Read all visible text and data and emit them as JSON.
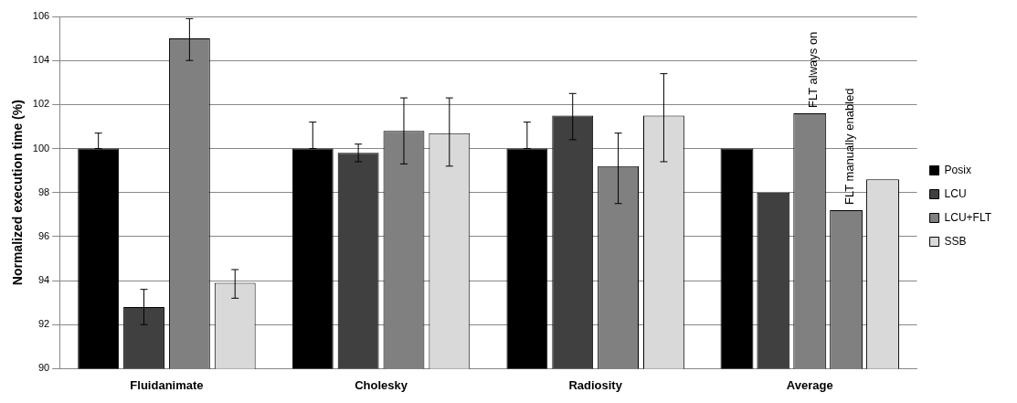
{
  "chart_data": {
    "type": "bar",
    "ylabel": "Normalized execution time (%)",
    "categories": [
      "Fluidanimate",
      "Cholesky",
      "Radiosity",
      "Average"
    ],
    "series": [
      {
        "name": "Posix",
        "color": "#000000",
        "values": [
          100,
          100,
          100,
          100
        ],
        "errors": [
          [
            100,
            100.7
          ],
          [
            100,
            101.2
          ],
          [
            100,
            101.2
          ],
          null
        ]
      },
      {
        "name": "LCU",
        "color": "#404040",
        "values": [
          92.8,
          99.8,
          101.5,
          98.0
        ],
        "errors": [
          [
            92.0,
            93.6
          ],
          [
            99.4,
            100.2
          ],
          [
            100.4,
            102.5
          ],
          null
        ]
      },
      {
        "name": "LCU+FLT",
        "color": "#808080",
        "values": [
          105.0,
          100.8,
          99.2,
          101.6
        ],
        "errors": [
          [
            104.0,
            105.9
          ],
          [
            99.3,
            102.3
          ],
          [
            97.5,
            100.7
          ],
          null
        ]
      },
      {
        "color": "#808080",
        "values": [
          null,
          null,
          null,
          97.2
        ]
      },
      {
        "name": "SSB",
        "color": "#d9d9d9",
        "values": [
          93.9,
          100.7,
          101.5,
          98.6
        ],
        "errors": [
          [
            93.2,
            94.5
          ],
          [
            99.2,
            102.3
          ],
          [
            99.4,
            103.4
          ],
          null
        ]
      }
    ],
    "ylim": [
      90,
      106
    ],
    "yticks": [
      90,
      92,
      94,
      96,
      98,
      100,
      102,
      104,
      106
    ],
    "grid": "y",
    "legend": "right",
    "annotations": [
      "FLT always on",
      "FLT manually enabled"
    ]
  }
}
